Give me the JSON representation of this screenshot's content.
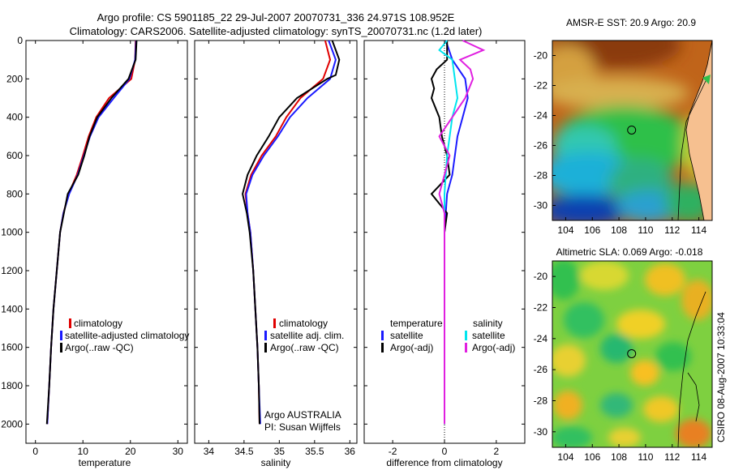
{
  "title": {
    "line1": "Argo profile: CS 5901185_22 29-Jul-2007 20070731_336 24.971S 108.952E",
    "line2": "Climatology: CARS2006. Satellite-adjusted climatology: synTS_20070731.nc (1.2d later)"
  },
  "credit": "CSIRO 08-Aug-2007 10:33:04",
  "colors": {
    "climatology": "#e00000",
    "satellite": "#1a1aff",
    "argo": "#000000",
    "salinity_sat": "#00e5ee",
    "salinity_argo": "#e020e0"
  },
  "chart_data": [
    {
      "type": "line",
      "xlabel": "temperature",
      "ylim": [
        0,
        2100
      ],
      "y_inverted": true,
      "xlim": [
        -2,
        32
      ],
      "xticks": [
        "0",
        "10",
        "20",
        "30"
      ],
      "yticks": [
        "0",
        "200",
        "400",
        "600",
        "800",
        "1000",
        "1200",
        "1400",
        "1600",
        "1800",
        "2000"
      ],
      "legend": [
        "climatology",
        "satellite-adjusted climatology",
        "Argo(..raw -QC)"
      ],
      "series": [
        {
          "name": "climatology",
          "points": [
            [
              21.1,
              0
            ],
            [
              21.0,
              100
            ],
            [
              20.2,
              200
            ],
            [
              15.5,
              300
            ],
            [
              12.8,
              400
            ],
            [
              11.2,
              500
            ],
            [
              10.0,
              600
            ],
            [
              8.7,
              700
            ],
            [
              7.0,
              800
            ],
            [
              5.9,
              900
            ],
            [
              5.2,
              1000
            ],
            [
              4.5,
              1200
            ],
            [
              3.8,
              1400
            ],
            [
              3.3,
              1600
            ],
            [
              2.9,
              1800
            ],
            [
              2.5,
              2000
            ]
          ]
        },
        {
          "name": "satellite-adjusted climatology",
          "points": [
            [
              21.2,
              0
            ],
            [
              21.0,
              100
            ],
            [
              19.8,
              200
            ],
            [
              16.5,
              300
            ],
            [
              13.3,
              400
            ],
            [
              11.5,
              500
            ],
            [
              10.2,
              600
            ],
            [
              8.9,
              700
            ],
            [
              7.1,
              800
            ],
            [
              5.9,
              900
            ],
            [
              5.2,
              1000
            ],
            [
              4.5,
              1200
            ],
            [
              3.8,
              1400
            ],
            [
              3.3,
              1600
            ],
            [
              2.9,
              1800
            ],
            [
              2.5,
              2000
            ]
          ]
        },
        {
          "name": "Argo(..raw -QC)",
          "points": [
            [
              21.3,
              0
            ],
            [
              21.1,
              100
            ],
            [
              19.6,
              200
            ],
            [
              16.0,
              300
            ],
            [
              13.0,
              400
            ],
            [
              11.4,
              500
            ],
            [
              10.3,
              600
            ],
            [
              9.0,
              700
            ],
            [
              6.8,
              800
            ],
            [
              6.0,
              900
            ],
            [
              5.2,
              1000
            ],
            [
              4.5,
              1200
            ],
            [
              3.8,
              1400
            ],
            [
              3.3,
              1600
            ],
            [
              2.9,
              1800
            ],
            [
              2.4,
              2000
            ]
          ]
        }
      ]
    },
    {
      "type": "line",
      "xlabel": "salinity",
      "ylim": [
        0,
        2100
      ],
      "y_inverted": true,
      "xlim": [
        33.8,
        36.1
      ],
      "xticks": [
        "34",
        "34.5",
        "35",
        "35.5",
        "36"
      ],
      "legend": [
        "climatology",
        "satellite adj. clim.",
        "Argo(..raw -QC)"
      ],
      "annotation": [
        "Argo AUSTRALIA",
        "PI: Susan Wijffels"
      ],
      "series": [
        {
          "name": "climatology",
          "points": [
            [
              35.65,
              0
            ],
            [
              35.72,
              100
            ],
            [
              35.62,
              200
            ],
            [
              35.3,
              300
            ],
            [
              35.1,
              400
            ],
            [
              34.95,
              500
            ],
            [
              34.75,
              600
            ],
            [
              34.6,
              700
            ],
            [
              34.52,
              800
            ],
            [
              34.55,
              900
            ],
            [
              34.59,
              1000
            ],
            [
              34.63,
              1200
            ],
            [
              34.66,
              1400
            ],
            [
              34.69,
              1600
            ],
            [
              34.71,
              1800
            ],
            [
              34.72,
              2000
            ]
          ]
        },
        {
          "name": "satellite adj. clim.",
          "points": [
            [
              35.7,
              0
            ],
            [
              35.8,
              100
            ],
            [
              35.72,
              200
            ],
            [
              35.4,
              300
            ],
            [
              35.15,
              400
            ],
            [
              34.98,
              500
            ],
            [
              34.78,
              600
            ],
            [
              34.62,
              700
            ],
            [
              34.53,
              800
            ],
            [
              34.55,
              900
            ],
            [
              34.59,
              1000
            ],
            [
              34.63,
              1200
            ],
            [
              34.66,
              1400
            ],
            [
              34.69,
              1600
            ],
            [
              34.71,
              1800
            ],
            [
              34.73,
              2000
            ]
          ]
        },
        {
          "name": "Argo(..raw -QC)",
          "points": [
            [
              35.75,
              0
            ],
            [
              35.85,
              100
            ],
            [
              35.8,
              180
            ],
            [
              35.68,
              200
            ],
            [
              35.25,
              300
            ],
            [
              35.0,
              400
            ],
            [
              34.85,
              500
            ],
            [
              34.68,
              600
            ],
            [
              34.55,
              700
            ],
            [
              34.48,
              800
            ],
            [
              34.54,
              900
            ],
            [
              34.58,
              1000
            ],
            [
              34.63,
              1200
            ],
            [
              34.66,
              1400
            ],
            [
              34.69,
              1600
            ],
            [
              34.71,
              1800
            ],
            [
              34.72,
              2000
            ]
          ]
        }
      ]
    },
    {
      "type": "line",
      "xlabel": "difference from climatology",
      "ylim": [
        0,
        2100
      ],
      "y_inverted": true,
      "xlim": [
        -3.1,
        3.1
      ],
      "xticks": [
        "-2",
        "0",
        "2"
      ],
      "legend": {
        "temperature_heading": "temperature",
        "salinity_heading": "salinity",
        "temperature": [
          "satellite",
          "Argo(-adj)"
        ],
        "salinity": [
          "satellite",
          "Argo(-adj)"
        ]
      },
      "series": [
        {
          "name": "temperature satellite",
          "points": [
            [
              0.05,
              0
            ],
            [
              0.3,
              100
            ],
            [
              0.8,
              200
            ],
            [
              0.9,
              300
            ],
            [
              0.7,
              400
            ],
            [
              0.5,
              500
            ],
            [
              0.4,
              600
            ],
            [
              0.3,
              700
            ],
            [
              0.1,
              800
            ],
            [
              0.05,
              900
            ],
            [
              0,
              1000
            ],
            [
              0,
              1400
            ],
            [
              0,
              2000
            ]
          ]
        },
        {
          "name": "temperature Argo(-adj)",
          "points": [
            [
              0.1,
              0
            ],
            [
              0.1,
              100
            ],
            [
              -0.3,
              150
            ],
            [
              -0.5,
              200
            ],
            [
              -0.4,
              250
            ],
            [
              -0.5,
              300
            ],
            [
              -0.2,
              400
            ],
            [
              -0.1,
              500
            ],
            [
              0.1,
              600
            ],
            [
              0.2,
              700
            ],
            [
              -0.5,
              800
            ],
            [
              -0.2,
              850
            ],
            [
              0.1,
              900
            ],
            [
              0,
              1000
            ],
            [
              0,
              1400
            ],
            [
              0,
              2000
            ]
          ]
        },
        {
          "name": "salinity satellite",
          "points": [
            [
              0.1,
              0
            ],
            [
              -0.2,
              50
            ],
            [
              0.3,
              100
            ],
            [
              0.4,
              200
            ],
            [
              0.5,
              300
            ],
            [
              0.3,
              400
            ],
            [
              0.2,
              500
            ],
            [
              0.1,
              600
            ],
            [
              0.05,
              700
            ],
            [
              0,
              800
            ],
            [
              0,
              1000
            ],
            [
              0,
              2000
            ]
          ]
        },
        {
          "name": "salinity Argo(-adj)",
          "points": [
            [
              0.7,
              0
            ],
            [
              1.5,
              50
            ],
            [
              0.6,
              100
            ],
            [
              1.0,
              150
            ],
            [
              1.1,
              200
            ],
            [
              0.8,
              300
            ],
            [
              0.3,
              400
            ],
            [
              -0.2,
              500
            ],
            [
              0.2,
              600
            ],
            [
              0.0,
              700
            ],
            [
              -0.2,
              800
            ],
            [
              0.0,
              900
            ],
            [
              0.0,
              1000
            ],
            [
              0.0,
              1300
            ],
            [
              0,
              2000
            ]
          ]
        }
      ]
    },
    {
      "type": "heatmap",
      "title": "AMSR-E SST: 20.9 Argo: 20.9",
      "xticks": [
        "104",
        "106",
        "108",
        "110",
        "112",
        "114"
      ],
      "yticks": [
        "-20",
        "-22",
        "-24",
        "-26",
        "-28",
        "-30"
      ],
      "xlim": [
        103,
        115
      ],
      "ylim": [
        -31,
        -19
      ],
      "profile_location": {
        "lon": 108.952,
        "lat": -24.971
      }
    },
    {
      "type": "heatmap",
      "title": "Altimetric SLA: 0.069 Argo: -0.018",
      "xticks": [
        "104",
        "106",
        "108",
        "110",
        "112",
        "114"
      ],
      "yticks": [
        "-20",
        "-22",
        "-24",
        "-26",
        "-28",
        "-30"
      ],
      "xlim": [
        103,
        115
      ],
      "ylim": [
        -31,
        -19
      ],
      "profile_location": {
        "lon": 108.952,
        "lat": -24.971
      }
    }
  ]
}
